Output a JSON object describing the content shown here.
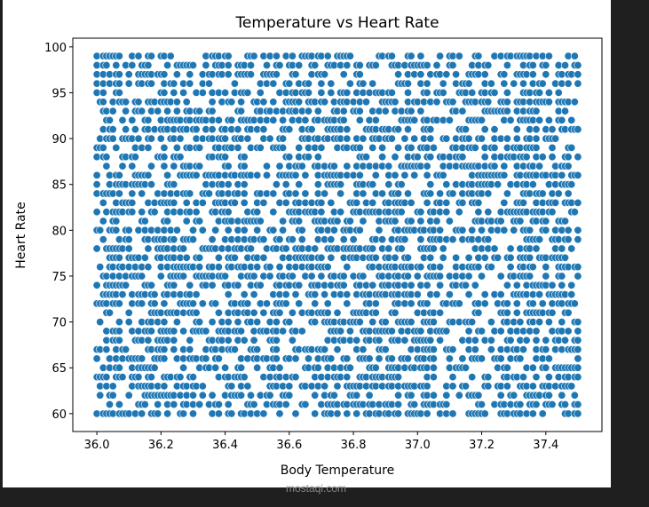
{
  "chart_data": {
    "type": "scatter",
    "title": "Temperature vs Heart Rate",
    "xlabel": "Body Temperature",
    "ylabel": "Heart Rate",
    "xlim": [
      35.925,
      37.575
    ],
    "ylim": [
      58.05,
      100.95
    ],
    "xticks": [
      "36.0",
      "36.2",
      "36.4",
      "36.6",
      "36.8",
      "37.0",
      "37.2",
      "37.4"
    ],
    "yticks": [
      "60",
      "65",
      "70",
      "75",
      "80",
      "85",
      "90",
      "95",
      "100"
    ],
    "x_range": [
      36.0,
      37.5
    ],
    "x_step": 0.01,
    "y_values": [
      60,
      61,
      62,
      63,
      64,
      65,
      66,
      67,
      68,
      69,
      70,
      71,
      72,
      73,
      74,
      75,
      76,
      77,
      78,
      79,
      80,
      81,
      82,
      83,
      84,
      85,
      86,
      87,
      88,
      89,
      90,
      91,
      92,
      93,
      94,
      95,
      96,
      97,
      98,
      99
    ],
    "point_color": "#1f77b4",
    "grid": false,
    "legend": "none"
  },
  "watermark": "mostaqi.com"
}
